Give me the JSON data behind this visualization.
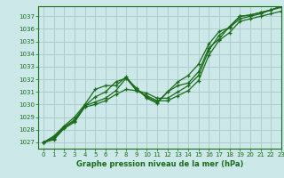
{
  "title": "Graphe pression niveau de la mer (hPa)",
  "bg_color": "#cce8e8",
  "grid_color": "#b0cccc",
  "line_color": "#1a6b1a",
  "xlim": [
    -0.5,
    23
  ],
  "ylim": [
    1026.5,
    1037.8
  ],
  "yticks": [
    1027,
    1028,
    1029,
    1030,
    1031,
    1032,
    1033,
    1034,
    1035,
    1036,
    1037
  ],
  "xticks": [
    0,
    1,
    2,
    3,
    4,
    5,
    6,
    7,
    8,
    9,
    10,
    11,
    12,
    13,
    14,
    15,
    16,
    17,
    18,
    19,
    20,
    21,
    22,
    23
  ],
  "line1_x": [
    0,
    1,
    2,
    3,
    4,
    5,
    6,
    7,
    8,
    9,
    10,
    11,
    12,
    13,
    14,
    15,
    16,
    17,
    18,
    19,
    20,
    21,
    22,
    23
  ],
  "line1_y": [
    1027.0,
    1027.3,
    1028.2,
    1028.7,
    1029.9,
    1030.2,
    1030.5,
    1031.1,
    1032.1,
    1031.1,
    1030.9,
    1030.5,
    1030.5,
    1031.0,
    1031.5,
    1032.3,
    1034.3,
    1035.5,
    1036.1,
    1037.0,
    1037.1,
    1037.3,
    1037.5,
    1037.7
  ],
  "line2_x": [
    0,
    1,
    2,
    3,
    4,
    5,
    6,
    7,
    8,
    9,
    10,
    11,
    12,
    13,
    14,
    15,
    16,
    17,
    18,
    19,
    20,
    21,
    22,
    23
  ],
  "line2_y": [
    1027.0,
    1027.2,
    1028.1,
    1028.6,
    1029.8,
    1030.0,
    1030.3,
    1030.8,
    1031.2,
    1031.1,
    1030.7,
    1030.3,
    1030.3,
    1030.7,
    1031.1,
    1031.9,
    1033.9,
    1035.1,
    1035.7,
    1036.6,
    1036.8,
    1037.0,
    1037.2,
    1037.4
  ],
  "line3_x": [
    0,
    1,
    2,
    3,
    4,
    5,
    6,
    7,
    8,
    9,
    10,
    11,
    12,
    13,
    14,
    15,
    16,
    17,
    18,
    19,
    20,
    21,
    22,
    23
  ],
  "line3_y": [
    1027.0,
    1027.5,
    1028.3,
    1029.0,
    1030.0,
    1031.2,
    1031.5,
    1031.5,
    1032.2,
    1031.2,
    1030.6,
    1030.2,
    1031.0,
    1031.5,
    1031.7,
    1032.6,
    1034.5,
    1035.2,
    1036.2,
    1037.0,
    1037.1,
    1037.3,
    1037.5,
    1037.8
  ],
  "line4_x": [
    0,
    1,
    2,
    3,
    4,
    5,
    6,
    7,
    8,
    9,
    10,
    11,
    12,
    13,
    14,
    15,
    16,
    17,
    18,
    19,
    20,
    21,
    22,
    23
  ],
  "line4_y": [
    1027.0,
    1027.4,
    1028.2,
    1028.8,
    1029.9,
    1030.6,
    1031.0,
    1031.8,
    1032.1,
    1031.3,
    1030.5,
    1030.1,
    1031.0,
    1031.8,
    1032.3,
    1033.2,
    1034.8,
    1035.8,
    1036.1,
    1036.8,
    1037.0,
    1037.2,
    1037.5,
    1037.8
  ],
  "tick_fontsize": 5,
  "xlabel_fontsize": 6
}
